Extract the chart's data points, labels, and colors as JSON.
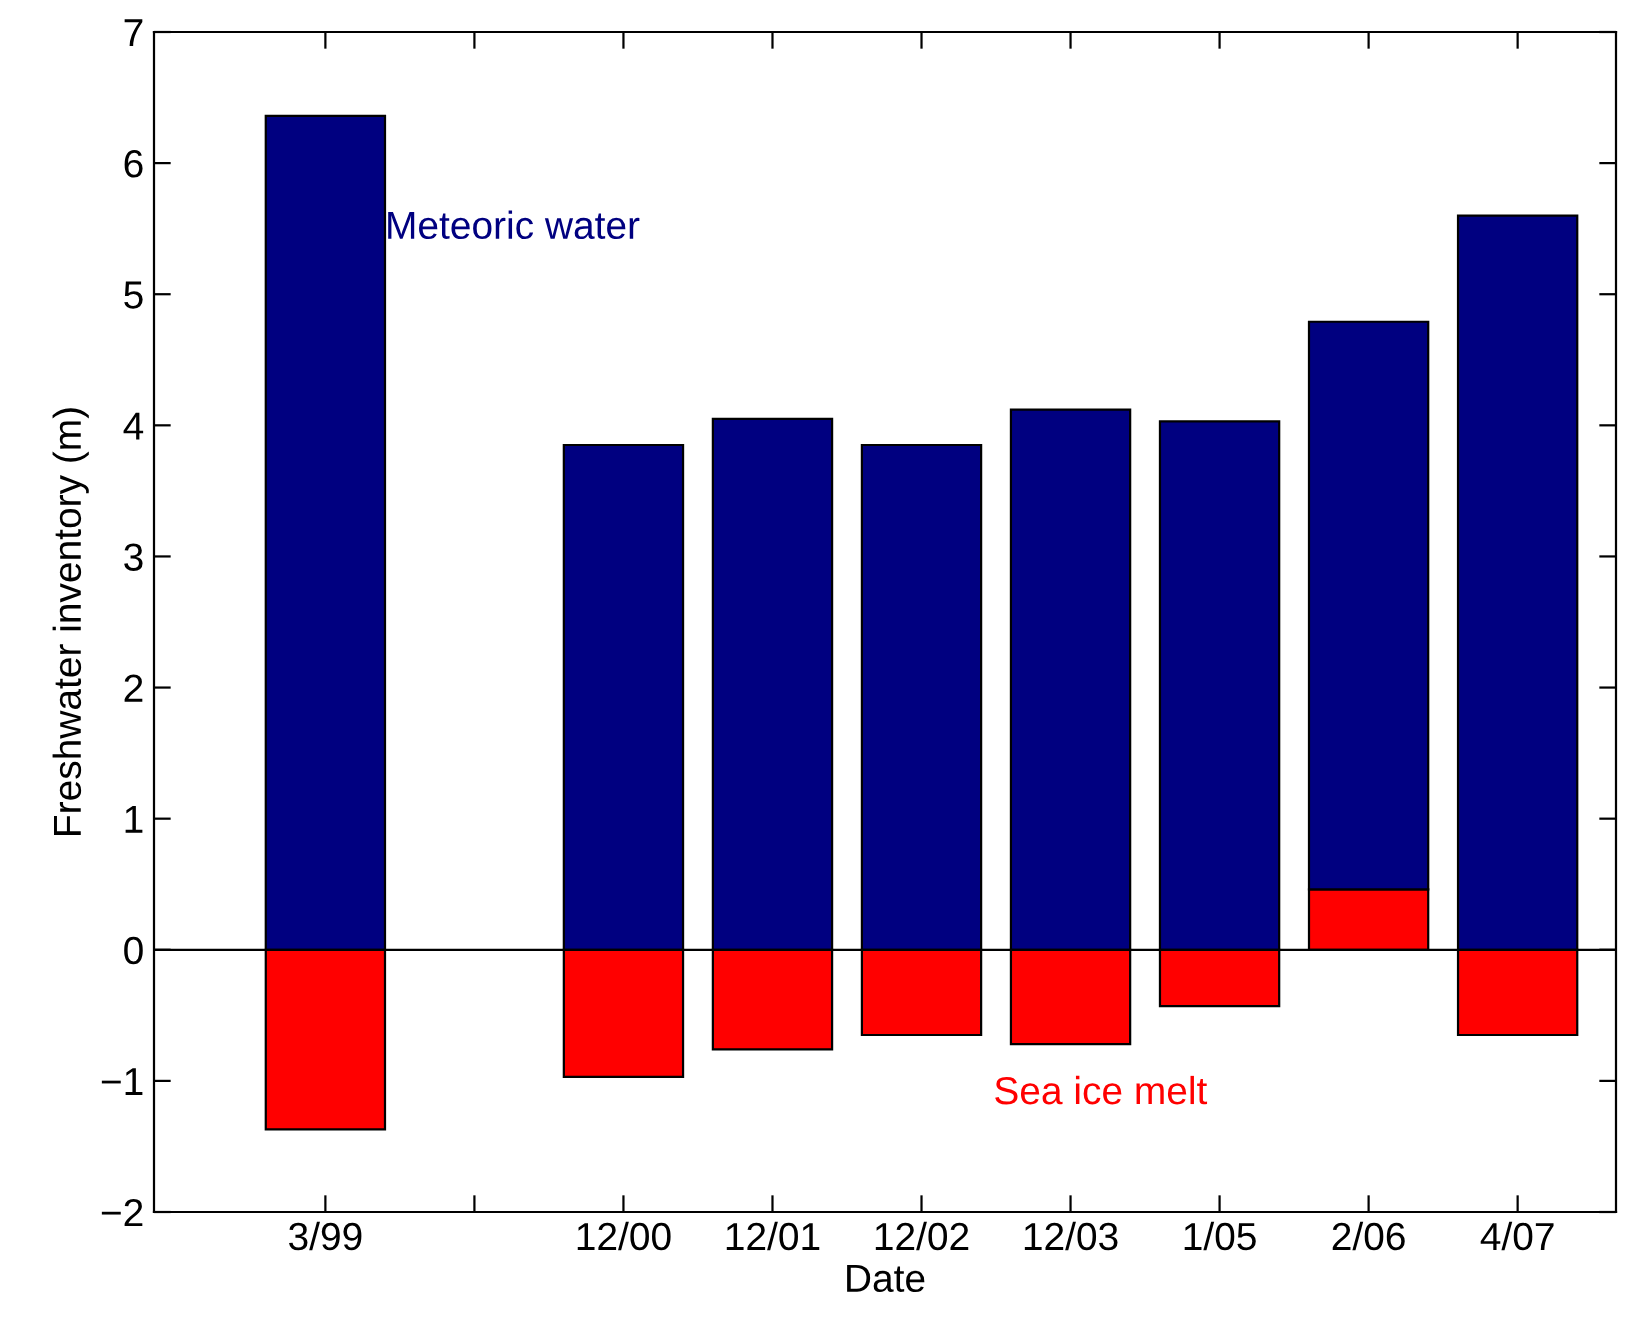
{
  "chart_data": {
    "type": "bar",
    "stacked": true,
    "xlabel": "Date",
    "ylabel": "Freshwater inventory (m)",
    "categories": [
      "3/99",
      null,
      "12/00",
      "12/01",
      "12/02",
      "12/03",
      "1/05",
      "2/06",
      "4/07"
    ],
    "series": [
      {
        "name": "Sea ice melt",
        "color": "#ff0000",
        "values": [
          -1.37,
          null,
          -0.97,
          -0.76,
          -0.65,
          -0.72,
          -0.43,
          0.46,
          -0.65
        ]
      },
      {
        "name": "Meteoric water",
        "color": "#000080",
        "values": [
          6.36,
          null,
          3.85,
          4.05,
          3.85,
          4.12,
          4.03,
          4.33,
          5.6
        ]
      }
    ],
    "ylim": [
      -2,
      7
    ],
    "yticks": [
      -2,
      -1,
      0,
      1,
      2,
      3,
      4,
      5,
      6,
      7
    ],
    "ref_lines": [
      {
        "axis": "y",
        "value": 0,
        "color": "#000000"
      }
    ],
    "grid": false,
    "legend": false
  }
}
